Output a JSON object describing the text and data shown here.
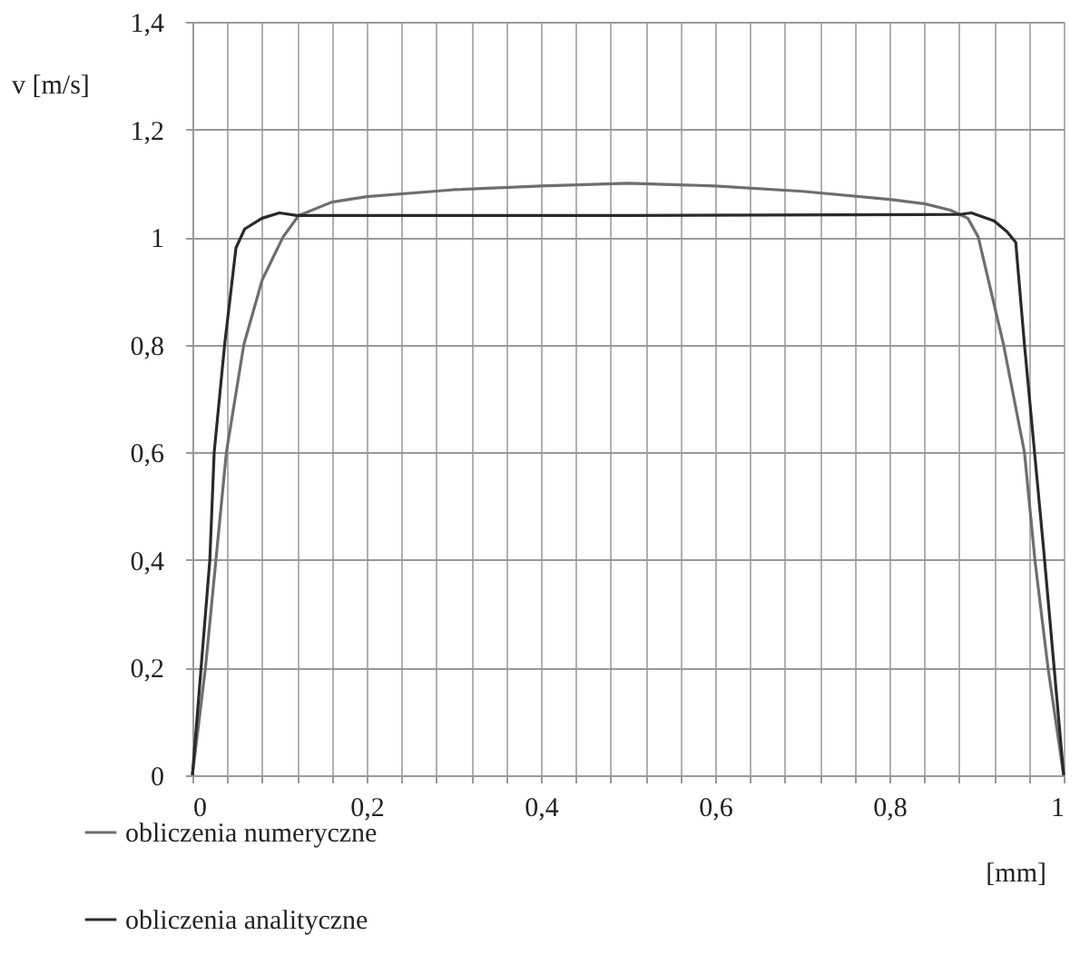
{
  "chart_data": {
    "type": "line",
    "xlabel": "[mm]",
    "ylabel": "v [m/s]",
    "xlim": [
      0,
      1
    ],
    "ylim": [
      0,
      1.4
    ],
    "xticks": [
      0,
      {
        "value": 0.04,
        "label": null
      },
      {
        "value": 0.08,
        "label": null
      },
      {
        "value": 0.12,
        "label": null
      },
      {
        "value": 0.16,
        "label": null
      },
      {
        "value": 0.2,
        "label": "0,2"
      },
      {
        "value": 0.24,
        "label": null
      },
      {
        "value": 0.28,
        "label": null
      },
      {
        "value": 0.32,
        "label": null
      },
      {
        "value": 0.36,
        "label": null
      },
      {
        "value": 0.4,
        "label": "0,4"
      },
      {
        "value": 0.44,
        "label": null
      },
      {
        "value": 0.48,
        "label": null
      },
      {
        "value": 0.52,
        "label": null
      },
      {
        "value": 0.56,
        "label": null
      },
      {
        "value": 0.6,
        "label": "0,6"
      },
      {
        "value": 0.64,
        "label": null
      },
      {
        "value": 0.68,
        "label": null
      },
      {
        "value": 0.72,
        "label": null
      },
      {
        "value": 0.76,
        "label": null
      },
      {
        "value": 0.8,
        "label": "0,8"
      },
      {
        "value": 0.84,
        "label": null
      },
      {
        "value": 0.88,
        "label": null
      },
      {
        "value": 0.92,
        "label": null
      },
      {
        "value": 0.96,
        "label": null
      },
      1
    ],
    "yticks": [
      0,
      {
        "value": 0.2,
        "label": "0,2"
      },
      {
        "value": 0.4,
        "label": "0,4"
      },
      {
        "value": 0.6,
        "label": "0,6"
      },
      {
        "value": 0.8,
        "label": "0,8"
      },
      1,
      {
        "value": 1.2,
        "label": "1,2"
      },
      {
        "value": 1.4,
        "label": "1,4"
      }
    ],
    "grid": true,
    "legend": "bottom left",
    "line_style": "solid",
    "series": [
      {
        "name": "obliczenia numeryczne",
        "color": "#6e6e6e",
        "x": [
          0,
          0.015,
          0.027,
          0.039,
          0.059,
          0.08,
          0.104,
          0.122,
          0.16,
          0.2,
          0.3,
          0.4,
          0.5,
          0.6,
          0.7,
          0.8,
          0.84,
          0.87,
          0.89,
          0.902,
          0.931,
          0.955,
          0.967,
          0.982,
          1
        ],
        "values": [
          0,
          0.2,
          0.4,
          0.6,
          0.8,
          0.92,
          1.0,
          1.04,
          1.065,
          1.075,
          1.088,
          1.095,
          1.1,
          1.095,
          1.085,
          1.07,
          1.062,
          1.05,
          1.035,
          1.0,
          0.8,
          0.6,
          0.4,
          0.2,
          0
        ]
      },
      {
        "name": "obliczenia analityczne",
        "color": "#2a2a2a",
        "x": [
          0,
          0.01,
          0.02,
          0.025,
          0.037,
          0.05,
          0.06,
          0.08,
          0.1,
          0.12,
          0.5,
          0.88,
          0.894,
          0.92,
          0.935,
          0.945,
          0.955,
          0.977,
          1
        ],
        "values": [
          0,
          0.2,
          0.4,
          0.6,
          0.8,
          0.98,
          1.015,
          1.035,
          1.045,
          1.04,
          1.04,
          1.042,
          1.045,
          1.03,
          1.01,
          0.99,
          0.8,
          0.42,
          0
        ]
      }
    ]
  }
}
